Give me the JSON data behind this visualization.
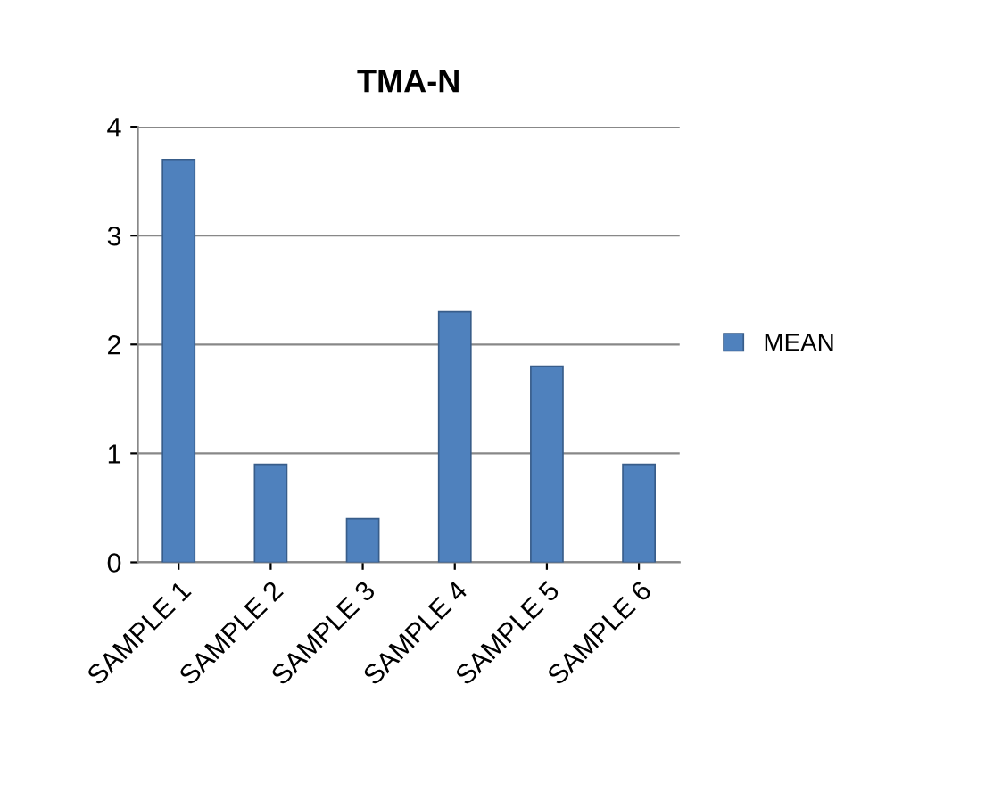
{
  "chart_data": {
    "type": "bar",
    "title": "TMA-N",
    "categories": [
      "SAMPLE 1",
      "SAMPLE 2",
      "SAMPLE 3",
      "SAMPLE 4",
      "SAMPLE 5",
      "SAMPLE 6"
    ],
    "series": [
      {
        "name": "MEAN",
        "color": "#4f81bd",
        "values": [
          3.7,
          0.9,
          0.4,
          2.3,
          1.8,
          0.9
        ]
      }
    ],
    "ylim": [
      0,
      4
    ],
    "yticks": [
      0,
      1,
      2,
      3,
      4
    ],
    "grid": "y",
    "legend": "right"
  }
}
